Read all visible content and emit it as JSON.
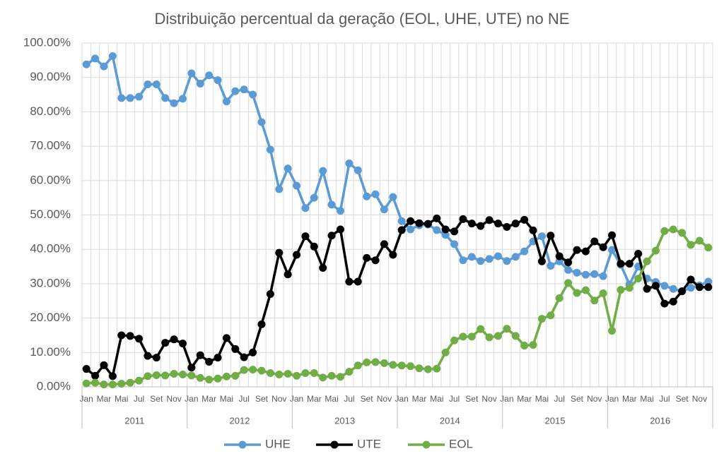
{
  "chart_data": {
    "type": "line",
    "title": "Distribuição percentual da geração (EOL, UHE, UTE) no NE",
    "categories": [
      "Jan",
      null,
      "Mar",
      null,
      "Mai",
      null,
      "Jul",
      null,
      "Set",
      null,
      "Nov",
      null,
      "Jan",
      null,
      "Mar",
      null,
      "Mai",
      null,
      "Jul",
      null,
      "Set",
      null,
      "Nov",
      null,
      "Jan",
      null,
      "Mar",
      null,
      "Mai",
      null,
      "Jul",
      null,
      "Set",
      null,
      "Nov",
      null,
      "Jan",
      null,
      "Mar",
      null,
      "Mai",
      null,
      "Jul",
      null,
      "Set",
      null,
      "Nov",
      null,
      "Jan",
      null,
      "Mar",
      null,
      "Mai",
      null,
      "Jul",
      null,
      "Set",
      null,
      "Nov",
      null,
      "Jan",
      null,
      "Mar",
      null,
      "Mai",
      null,
      "Jul",
      null,
      "Set",
      null,
      "Nov",
      null
    ],
    "category_groups": [
      "2011",
      "2012",
      "2013",
      "2014",
      "2015",
      "2016"
    ],
    "series": [
      {
        "name": "UHE",
        "color": "#5b9bd5",
        "values": [
          93.8,
          95.5,
          93.2,
          96.2,
          84,
          84,
          84.4,
          88,
          88,
          84,
          82.5,
          83.8,
          91.2,
          88.2,
          90.6,
          89.2,
          83,
          86,
          86.5,
          85,
          77,
          69,
          57.5,
          63.5,
          58.5,
          52,
          55,
          62.8,
          53,
          51.2,
          65,
          63,
          55.4,
          56,
          51.6,
          55.2,
          48.2,
          45.8,
          47,
          47.2,
          45.6,
          44.2,
          41.5,
          36.8,
          37.8,
          36.6,
          37.2,
          38,
          36.6,
          37.8,
          39.4,
          42.3,
          43.8,
          35.2,
          36.5,
          34,
          33.2,
          32.6,
          32.8,
          32.2,
          39.8,
          35.5,
          29.8,
          35,
          31.5,
          30.5,
          29.4,
          28.5,
          27.8,
          28.8,
          29.5,
          30.6
        ]
      },
      {
        "name": "UTE",
        "color": "#000000",
        "values": [
          5.2,
          3.2,
          6.3,
          3.1,
          15,
          14.8,
          14,
          9,
          8.5,
          12.8,
          13.8,
          12.6,
          5.6,
          9.2,
          7.3,
          8.5,
          14.2,
          11,
          8.6,
          10,
          18.2,
          27,
          39,
          32.7,
          38.4,
          43.8,
          40.8,
          34.6,
          44,
          45.8,
          30.6,
          30.6,
          37.5,
          36.8,
          41.5,
          38.4,
          45.6,
          48.2,
          47.6,
          47.4,
          49,
          45.8,
          45.2,
          48.8,
          47.5,
          46.8,
          48.5,
          47.5,
          46.5,
          47.5,
          48.6,
          45.5,
          36.5,
          44,
          38,
          36.2,
          39.8,
          39.4,
          42.3,
          40.6,
          44.1,
          35.8,
          35.8,
          38.7,
          28.5,
          29.4,
          24.2,
          24.8,
          27.8,
          31.2,
          29,
          29
        ]
      },
      {
        "name": "EOL",
        "color": "#70ad47",
        "values": [
          1,
          1.2,
          0.7,
          0.7,
          0.9,
          1.2,
          1.8,
          3.1,
          3.4,
          3.3,
          3.8,
          3.6,
          3.3,
          2.6,
          2.1,
          2.4,
          3,
          3.2,
          4.9,
          5,
          4.7,
          4,
          3.6,
          3.8,
          3.2,
          4,
          4,
          2.7,
          3.2,
          2.9,
          4.4,
          6.2,
          7.1,
          7.2,
          6.9,
          6.4,
          6.2,
          6,
          5.4,
          5.1,
          5.3,
          10,
          13.5,
          14.6,
          14.6,
          16.8,
          14.4,
          14.8,
          16.9,
          14.8,
          12,
          12.2,
          19.8,
          20.8,
          25.8,
          30.2,
          27.3,
          28.1,
          25.1,
          27.2,
          16.3,
          28.2,
          28.8,
          31.5,
          36.5,
          39.6,
          45.3,
          45.8,
          44.8,
          41.3,
          42.5,
          40.5
        ]
      }
    ],
    "ylim": [
      0,
      100
    ],
    "yticks": [
      {
        "value": 0,
        "label": "0.00%"
      },
      {
        "value": 10,
        "label": "10.00%"
      },
      {
        "value": 20,
        "label": "20.00%"
      },
      {
        "value": 30,
        "label": "30.00%"
      },
      {
        "value": 40,
        "label": "40.00%"
      },
      {
        "value": 50,
        "label": "50.00%"
      },
      {
        "value": 60,
        "label": "60.00%"
      },
      {
        "value": 70,
        "label": "70.00%"
      },
      {
        "value": 80,
        "label": "80.00%"
      },
      {
        "value": 90,
        "label": "90.00%"
      },
      {
        "value": 100,
        "label": "100.00%"
      }
    ],
    "grid": true,
    "legend": "bottom"
  }
}
